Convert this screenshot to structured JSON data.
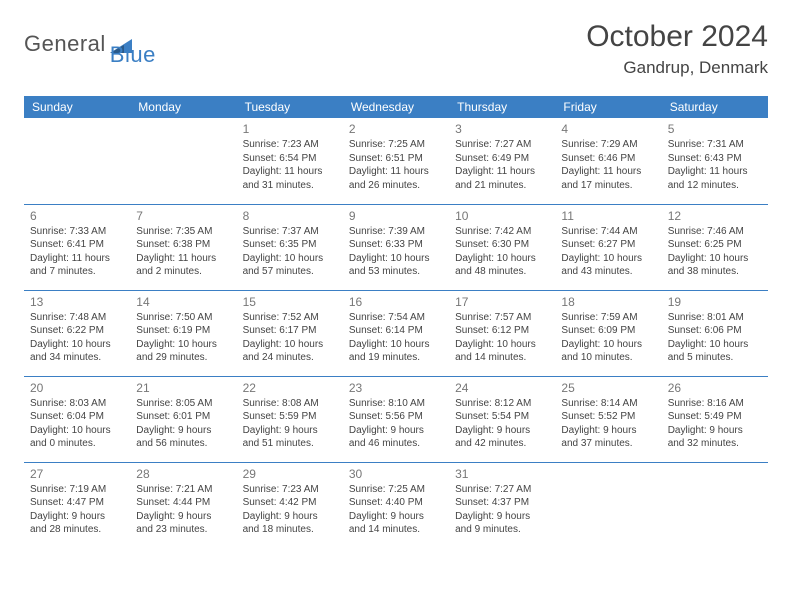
{
  "brand": {
    "name1": "General",
    "name2": "Blue"
  },
  "header": {
    "title": "October 2024",
    "location": "Gandrup, Denmark"
  },
  "colors": {
    "accent": "#3b7fc4",
    "text": "#444444",
    "muted": "#777777",
    "bg": "#ffffff"
  },
  "dayHeaders": [
    "Sunday",
    "Monday",
    "Tuesday",
    "Wednesday",
    "Thursday",
    "Friday",
    "Saturday"
  ],
  "weeks": [
    [
      {
        "num": "",
        "lines": []
      },
      {
        "num": "",
        "lines": []
      },
      {
        "num": "1",
        "lines": [
          "Sunrise: 7:23 AM",
          "Sunset: 6:54 PM",
          "Daylight: 11 hours",
          "and 31 minutes."
        ]
      },
      {
        "num": "2",
        "lines": [
          "Sunrise: 7:25 AM",
          "Sunset: 6:51 PM",
          "Daylight: 11 hours",
          "and 26 minutes."
        ]
      },
      {
        "num": "3",
        "lines": [
          "Sunrise: 7:27 AM",
          "Sunset: 6:49 PM",
          "Daylight: 11 hours",
          "and 21 minutes."
        ]
      },
      {
        "num": "4",
        "lines": [
          "Sunrise: 7:29 AM",
          "Sunset: 6:46 PM",
          "Daylight: 11 hours",
          "and 17 minutes."
        ]
      },
      {
        "num": "5",
        "lines": [
          "Sunrise: 7:31 AM",
          "Sunset: 6:43 PM",
          "Daylight: 11 hours",
          "and 12 minutes."
        ]
      }
    ],
    [
      {
        "num": "6",
        "lines": [
          "Sunrise: 7:33 AM",
          "Sunset: 6:41 PM",
          "Daylight: 11 hours",
          "and 7 minutes."
        ]
      },
      {
        "num": "7",
        "lines": [
          "Sunrise: 7:35 AM",
          "Sunset: 6:38 PM",
          "Daylight: 11 hours",
          "and 2 minutes."
        ]
      },
      {
        "num": "8",
        "lines": [
          "Sunrise: 7:37 AM",
          "Sunset: 6:35 PM",
          "Daylight: 10 hours",
          "and 57 minutes."
        ]
      },
      {
        "num": "9",
        "lines": [
          "Sunrise: 7:39 AM",
          "Sunset: 6:33 PM",
          "Daylight: 10 hours",
          "and 53 minutes."
        ]
      },
      {
        "num": "10",
        "lines": [
          "Sunrise: 7:42 AM",
          "Sunset: 6:30 PM",
          "Daylight: 10 hours",
          "and 48 minutes."
        ]
      },
      {
        "num": "11",
        "lines": [
          "Sunrise: 7:44 AM",
          "Sunset: 6:27 PM",
          "Daylight: 10 hours",
          "and 43 minutes."
        ]
      },
      {
        "num": "12",
        "lines": [
          "Sunrise: 7:46 AM",
          "Sunset: 6:25 PM",
          "Daylight: 10 hours",
          "and 38 minutes."
        ]
      }
    ],
    [
      {
        "num": "13",
        "lines": [
          "Sunrise: 7:48 AM",
          "Sunset: 6:22 PM",
          "Daylight: 10 hours",
          "and 34 minutes."
        ]
      },
      {
        "num": "14",
        "lines": [
          "Sunrise: 7:50 AM",
          "Sunset: 6:19 PM",
          "Daylight: 10 hours",
          "and 29 minutes."
        ]
      },
      {
        "num": "15",
        "lines": [
          "Sunrise: 7:52 AM",
          "Sunset: 6:17 PM",
          "Daylight: 10 hours",
          "and 24 minutes."
        ]
      },
      {
        "num": "16",
        "lines": [
          "Sunrise: 7:54 AM",
          "Sunset: 6:14 PM",
          "Daylight: 10 hours",
          "and 19 minutes."
        ]
      },
      {
        "num": "17",
        "lines": [
          "Sunrise: 7:57 AM",
          "Sunset: 6:12 PM",
          "Daylight: 10 hours",
          "and 14 minutes."
        ]
      },
      {
        "num": "18",
        "lines": [
          "Sunrise: 7:59 AM",
          "Sunset: 6:09 PM",
          "Daylight: 10 hours",
          "and 10 minutes."
        ]
      },
      {
        "num": "19",
        "lines": [
          "Sunrise: 8:01 AM",
          "Sunset: 6:06 PM",
          "Daylight: 10 hours",
          "and 5 minutes."
        ]
      }
    ],
    [
      {
        "num": "20",
        "lines": [
          "Sunrise: 8:03 AM",
          "Sunset: 6:04 PM",
          "Daylight: 10 hours",
          "and 0 minutes."
        ]
      },
      {
        "num": "21",
        "lines": [
          "Sunrise: 8:05 AM",
          "Sunset: 6:01 PM",
          "Daylight: 9 hours",
          "and 56 minutes."
        ]
      },
      {
        "num": "22",
        "lines": [
          "Sunrise: 8:08 AM",
          "Sunset: 5:59 PM",
          "Daylight: 9 hours",
          "and 51 minutes."
        ]
      },
      {
        "num": "23",
        "lines": [
          "Sunrise: 8:10 AM",
          "Sunset: 5:56 PM",
          "Daylight: 9 hours",
          "and 46 minutes."
        ]
      },
      {
        "num": "24",
        "lines": [
          "Sunrise: 8:12 AM",
          "Sunset: 5:54 PM",
          "Daylight: 9 hours",
          "and 42 minutes."
        ]
      },
      {
        "num": "25",
        "lines": [
          "Sunrise: 8:14 AM",
          "Sunset: 5:52 PM",
          "Daylight: 9 hours",
          "and 37 minutes."
        ]
      },
      {
        "num": "26",
        "lines": [
          "Sunrise: 8:16 AM",
          "Sunset: 5:49 PM",
          "Daylight: 9 hours",
          "and 32 minutes."
        ]
      }
    ],
    [
      {
        "num": "27",
        "lines": [
          "Sunrise: 7:19 AM",
          "Sunset: 4:47 PM",
          "Daylight: 9 hours",
          "and 28 minutes."
        ]
      },
      {
        "num": "28",
        "lines": [
          "Sunrise: 7:21 AM",
          "Sunset: 4:44 PM",
          "Daylight: 9 hours",
          "and 23 minutes."
        ]
      },
      {
        "num": "29",
        "lines": [
          "Sunrise: 7:23 AM",
          "Sunset: 4:42 PM",
          "Daylight: 9 hours",
          "and 18 minutes."
        ]
      },
      {
        "num": "30",
        "lines": [
          "Sunrise: 7:25 AM",
          "Sunset: 4:40 PM",
          "Daylight: 9 hours",
          "and 14 minutes."
        ]
      },
      {
        "num": "31",
        "lines": [
          "Sunrise: 7:27 AM",
          "Sunset: 4:37 PM",
          "Daylight: 9 hours",
          "and 9 minutes."
        ]
      },
      {
        "num": "",
        "lines": []
      },
      {
        "num": "",
        "lines": []
      }
    ]
  ]
}
